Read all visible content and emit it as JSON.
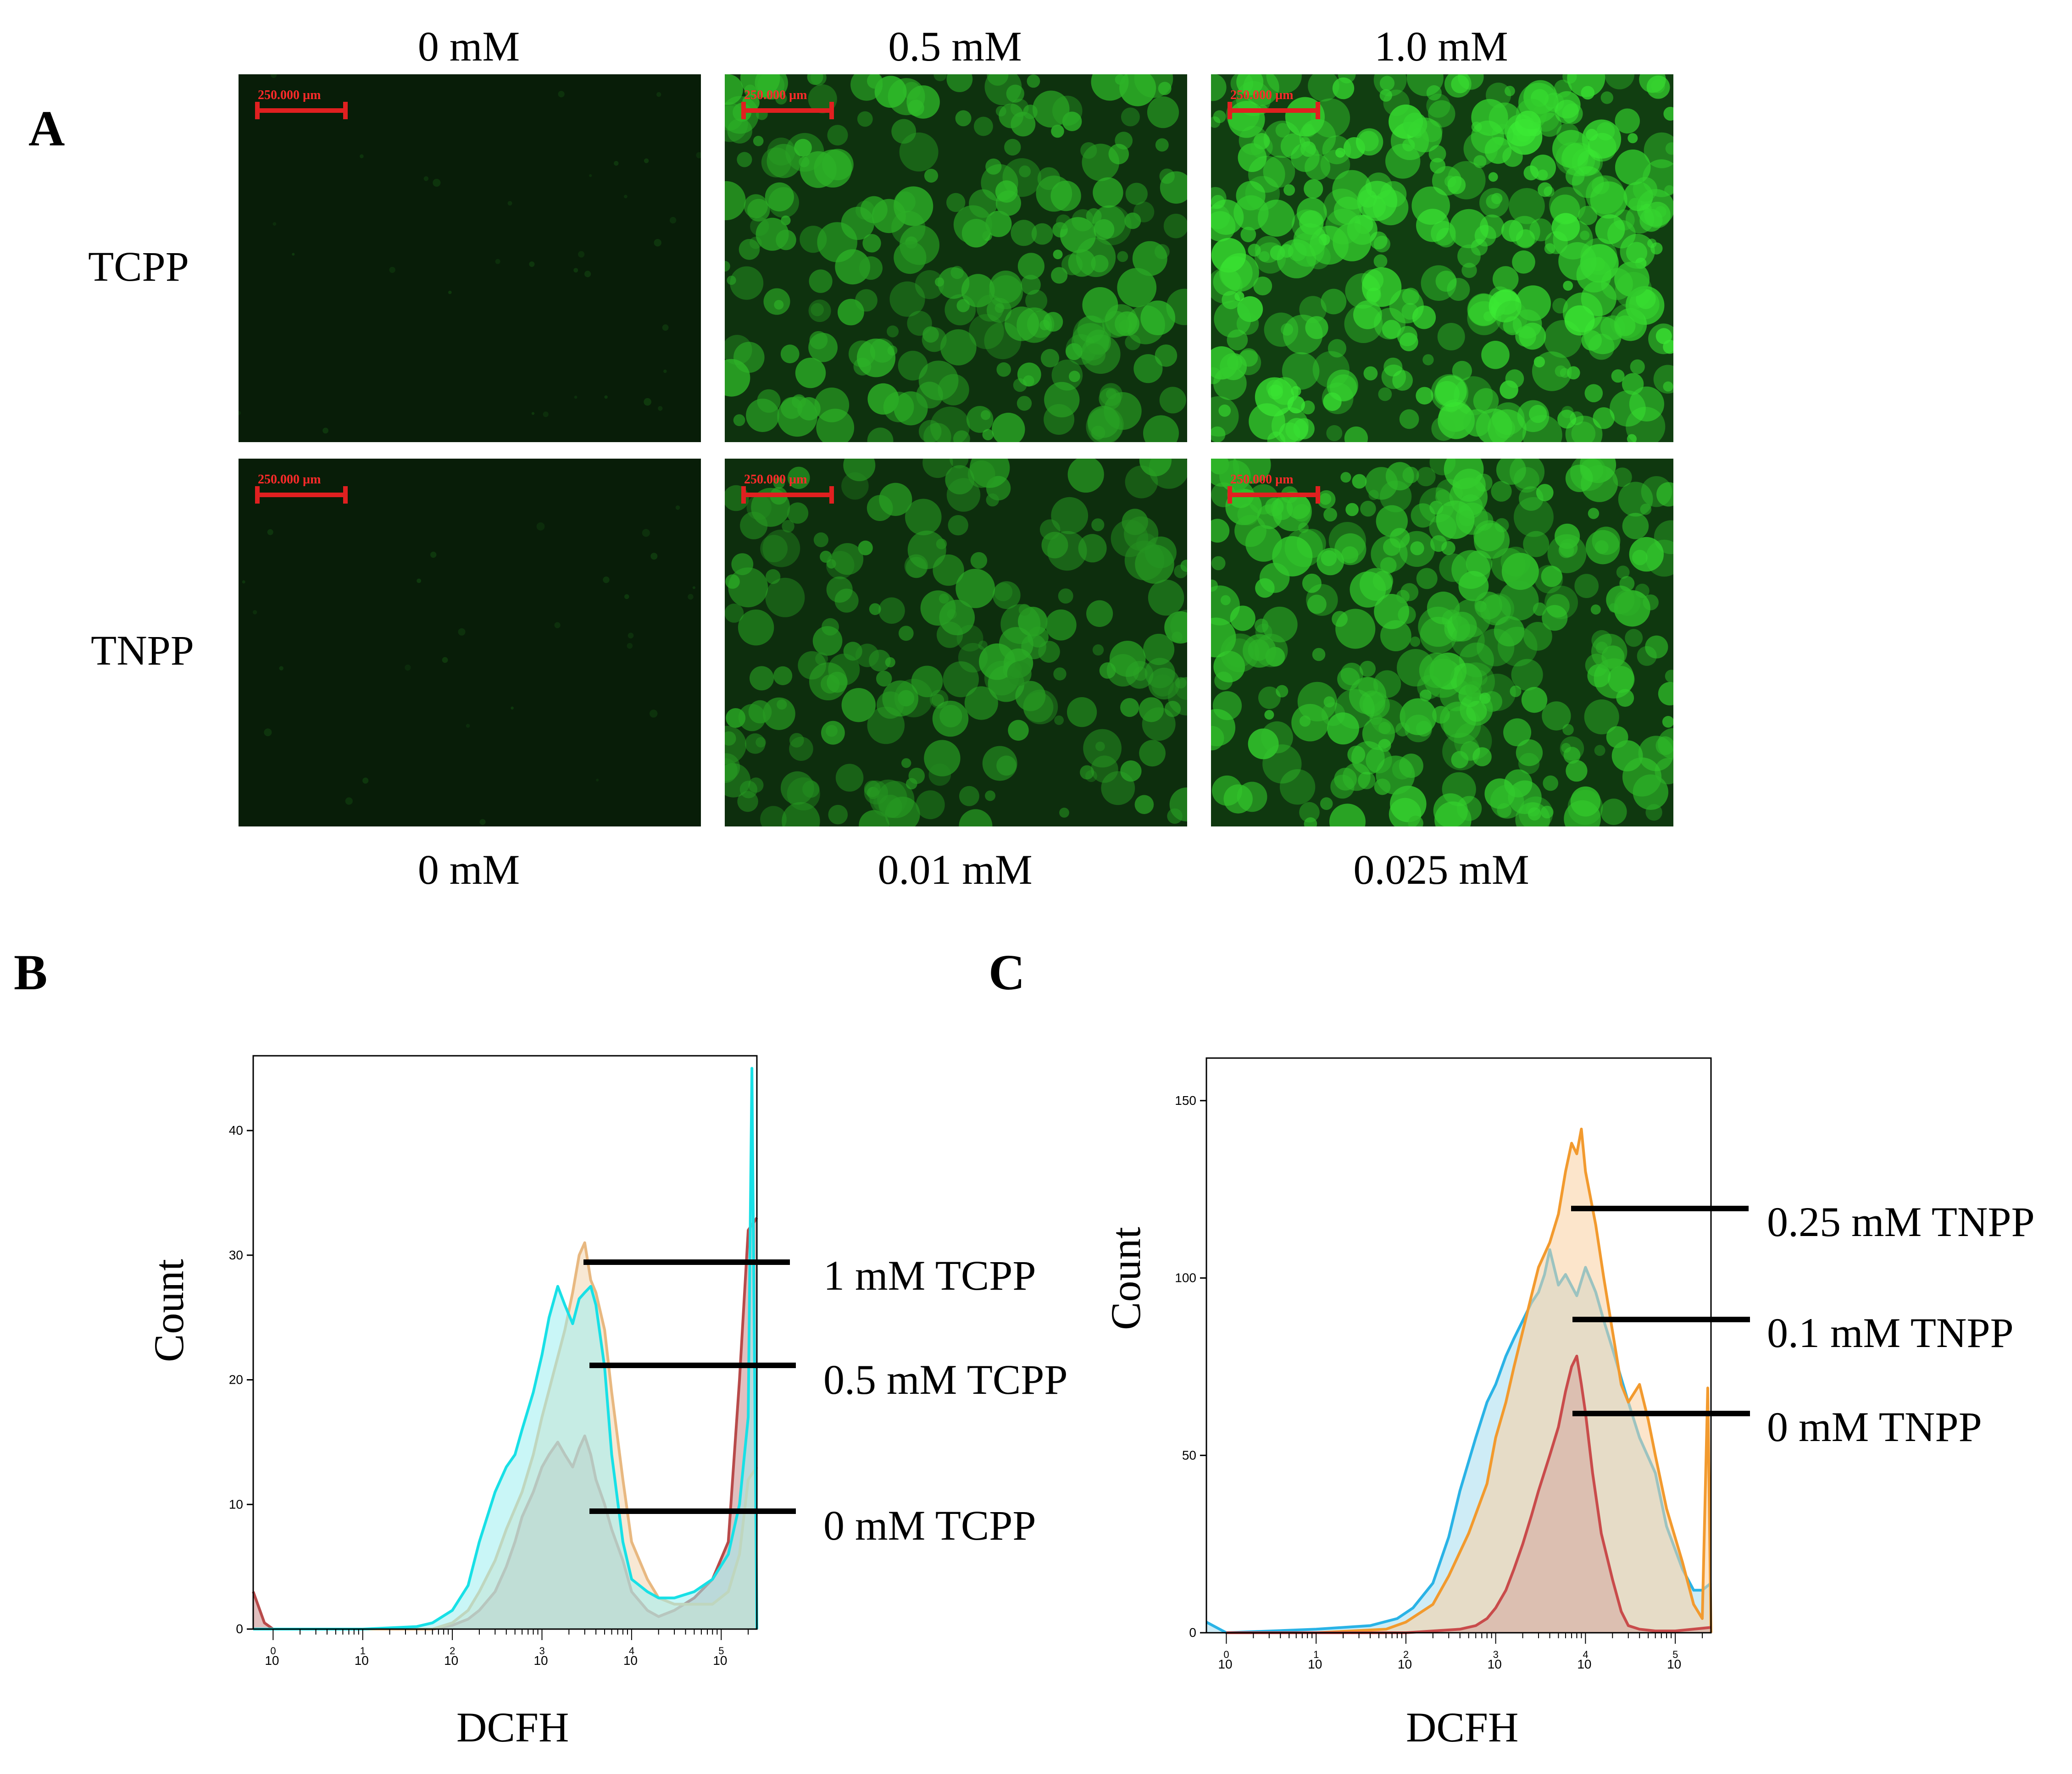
{
  "panels": {
    "a": {
      "letter": "A",
      "top_concentrations": [
        "0 mM",
        "0.5 mM",
        "1.0 mM"
      ],
      "bottom_concentrations": [
        "0 mM",
        "0.01 mM",
        "0.025 mM"
      ],
      "rows": [
        "TCPP",
        "TNPP"
      ],
      "scale_bar_label": "250.000 µm",
      "images": [
        {
          "row": "TCPP",
          "concentration": "0 mM",
          "intensity": 0.03
        },
        {
          "row": "TCPP",
          "concentration": "0.5 mM",
          "intensity": 0.55
        },
        {
          "row": "TCPP",
          "concentration": "1.0 mM",
          "intensity": 0.85
        },
        {
          "row": "TNPP",
          "concentration": "0 mM",
          "intensity": 0.02
        },
        {
          "row": "TNPP",
          "concentration": "0.01 mM",
          "intensity": 0.45
        },
        {
          "row": "TNPP",
          "concentration": "0.025 mM",
          "intensity": 0.7
        }
      ]
    },
    "b": {
      "letter": "B"
    },
    "c": {
      "letter": "C"
    }
  },
  "chart_data": [
    {
      "type": "area",
      "panel": "B",
      "xlabel": "DCFH",
      "ylabel": "Count",
      "x_scale": "log",
      "xlim": [
        0.6,
        250000
      ],
      "ylim": [
        0,
        46
      ],
      "x_ticks": [
        {
          "base": "10",
          "exp": "0",
          "value": 1
        },
        {
          "base": "10",
          "exp": "1",
          "value": 10
        },
        {
          "base": "10",
          "exp": "2",
          "value": 100
        },
        {
          "base": "10",
          "exp": "3",
          "value": 1000
        },
        {
          "base": "10",
          "exp": "4",
          "value": 10000
        },
        {
          "base": "10",
          "exp": "5",
          "value": 100000
        }
      ],
      "y_ticks": [
        "0",
        "10",
        "20",
        "30",
        "40"
      ],
      "legend_labels": [
        "1 mM TCPP",
        "0.5 mM TCPP",
        "0 mM TCPP"
      ],
      "series": [
        {
          "name": "0 mM TCPP",
          "line_color": "#b84a4a",
          "fill_color": "#c98a8a",
          "x": [
            0.6,
            0.8,
            1,
            10,
            60,
            100,
            150,
            200,
            300,
            400,
            500,
            600,
            800,
            1000,
            1200,
            1500,
            1800,
            2200,
            2600,
            3000,
            3500,
            4000,
            5000,
            6000,
            8000,
            10000,
            15000,
            20000,
            30000,
            50000,
            80000,
            120000,
            160000,
            200000,
            250000
          ],
          "y": [
            3,
            0.5,
            0,
            0,
            0,
            0.3,
            0.8,
            1.5,
            3,
            5,
            7,
            9,
            11,
            13,
            14,
            15,
            14,
            13,
            14.5,
            15.5,
            14,
            12,
            10,
            8,
            5.5,
            3,
            1.5,
            1,
            1.5,
            2.5,
            4,
            7,
            20,
            32,
            33
          ]
        },
        {
          "name": "1 mM TCPP",
          "line_color": "#e8b880",
          "fill_color": "#f3d6b0",
          "x": [
            1,
            10,
            60,
            100,
            150,
            200,
            300,
            400,
            600,
            800,
            1000,
            1400,
            1800,
            2200,
            2600,
            3000,
            3500,
            4000,
            5000,
            6000,
            8000,
            10000,
            15000,
            20000,
            30000,
            50000,
            80000,
            120000,
            160000,
            200000,
            250000
          ],
          "y": [
            0,
            0,
            0,
            0.5,
            1.5,
            3,
            5.5,
            8,
            11,
            14,
            17,
            21,
            24,
            27,
            30,
            31,
            28,
            27,
            24,
            19,
            12,
            7,
            4,
            2.5,
            2,
            2,
            2,
            3,
            6,
            12,
            13
          ]
        },
        {
          "name": "0.5 mM TCPP",
          "line_color": "#18e0e6",
          "fill_color": "#9deef0",
          "x": [
            0.6,
            1,
            10,
            40,
            60,
            100,
            150,
            200,
            300,
            400,
            500,
            600,
            800,
            1000,
            1200,
            1500,
            1800,
            2200,
            2600,
            3000,
            3500,
            4000,
            5000,
            6000,
            8000,
            10000,
            15000,
            20000,
            30000,
            50000,
            80000,
            120000,
            160000,
            200000,
            220000,
            250000
          ],
          "y": [
            0,
            0,
            0,
            0.2,
            0.5,
            1.5,
            3.5,
            7,
            11,
            13,
            14,
            16,
            19,
            22,
            25,
            27.5,
            26,
            24.5,
            26.5,
            27,
            27.5,
            26,
            21,
            14,
            7,
            4,
            3,
            2.5,
            2.5,
            3,
            4,
            6,
            10,
            17,
            45,
            0
          ]
        }
      ]
    },
    {
      "type": "area",
      "panel": "C",
      "xlabel": "DCFH",
      "ylabel": "Count",
      "x_scale": "log",
      "xlim": [
        0.6,
        250000
      ],
      "ylim": [
        0,
        162
      ],
      "x_ticks": [
        {
          "base": "10",
          "exp": "0",
          "value": 1
        },
        {
          "base": "10",
          "exp": "1",
          "value": 10
        },
        {
          "base": "10",
          "exp": "2",
          "value": 100
        },
        {
          "base": "10",
          "exp": "3",
          "value": 1000
        },
        {
          "base": "10",
          "exp": "4",
          "value": 10000
        },
        {
          "base": "10",
          "exp": "5",
          "value": 100000
        }
      ],
      "y_ticks": [
        "0",
        "50",
        "100",
        "150"
      ],
      "legend_labels": [
        "0.25 mM TNPP",
        "0.1 mM TNPP",
        "0 mM TNPP"
      ],
      "series": [
        {
          "name": "0.1 mM TNPP",
          "line_color": "#2ab3e6",
          "fill_color": "#a6dcef",
          "x": [
            0.6,
            1,
            10,
            40,
            80,
            120,
            200,
            300,
            400,
            600,
            800,
            1000,
            1300,
            1600,
            2000,
            2500,
            3000,
            3500,
            4000,
            5000,
            6000,
            8000,
            10000,
            13000,
            16000,
            20000,
            30000,
            40000,
            60000,
            80000,
            120000,
            160000,
            200000,
            250000
          ],
          "y": [
            3,
            0,
            1,
            2,
            4,
            7,
            14,
            27,
            40,
            55,
            65,
            70,
            78,
            83,
            88,
            93,
            96,
            101,
            108,
            98,
            101,
            95,
            103,
            96,
            88,
            80,
            65,
            55,
            45,
            30,
            18,
            12,
            12,
            14
          ]
        },
        {
          "name": "0.25 mM TNPP",
          "line_color": "#f29a2e",
          "fill_color": "#f9cfa0",
          "x": [
            1,
            10,
            60,
            100,
            200,
            300,
            500,
            800,
            1000,
            1300,
            1600,
            2000,
            2500,
            3000,
            4000,
            5000,
            6000,
            7000,
            8000,
            9000,
            10000,
            13000,
            16000,
            20000,
            25000,
            30000,
            40000,
            50000,
            60000,
            80000,
            120000,
            160000,
            200000,
            230000,
            250000
          ],
          "y": [
            0,
            0,
            1,
            3,
            8,
            16,
            28,
            42,
            55,
            65,
            75,
            85,
            95,
            103,
            110,
            118,
            130,
            138,
            135,
            142,
            130,
            115,
            100,
            85,
            70,
            65,
            70,
            60,
            50,
            35,
            20,
            8,
            4,
            69,
            0
          ]
        },
        {
          "name": "0 mM TNPP",
          "line_color": "#c94b4b",
          "fill_color": "#d3a79f",
          "x": [
            1,
            10,
            100,
            200,
            400,
            600,
            800,
            1000,
            1300,
            1600,
            2000,
            2500,
            3000,
            4000,
            5000,
            6000,
            7000,
            8000,
            9000,
            10000,
            12000,
            15000,
            20000,
            25000,
            30000,
            40000,
            60000,
            100000,
            250000
          ],
          "y": [
            0,
            0,
            0,
            0.5,
            1,
            2,
            4,
            7,
            12,
            18,
            25,
            33,
            40,
            50,
            58,
            68,
            75,
            78,
            70,
            62,
            45,
            28,
            15,
            6,
            2,
            1,
            0.5,
            0.5,
            1.5
          ]
        }
      ]
    }
  ]
}
